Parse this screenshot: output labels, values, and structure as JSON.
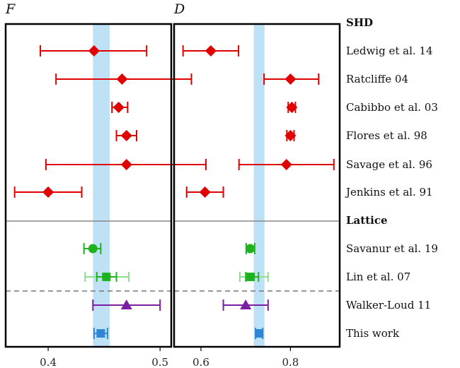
{
  "chart_data": [
    {
      "type": "scatter",
      "title": "F",
      "xlim": [
        0.362,
        0.51
      ],
      "xticks": [
        0.4,
        0.5
      ],
      "band": [
        0.44,
        0.455
      ],
      "band_color": "#bfe1f6",
      "points": [
        {
          "row": "Ledwig et al. 14",
          "value": 0.441,
          "low": 0.393,
          "high": 0.488,
          "marker": "diamond",
          "color": "#e00000"
        },
        {
          "row": "Ratcliffe 04",
          "value": 0.466,
          "low": 0.407,
          "high": 0.528,
          "marker": "diamond",
          "color": "#e00000"
        },
        {
          "row": "Cabibbo et al. 03",
          "value": 0.463,
          "low": 0.457,
          "high": 0.471,
          "marker": "diamond",
          "color": "#e00000"
        },
        {
          "row": "Flores et al. 98",
          "value": 0.47,
          "low": 0.461,
          "high": 0.479,
          "marker": "diamond",
          "color": "#e00000"
        },
        {
          "row": "Savage et al. 96",
          "value": 0.47,
          "low": 0.398,
          "high": 0.541,
          "marker": "diamond",
          "color": "#e00000"
        },
        {
          "row": "Jenkins et al. 91",
          "value": 0.4,
          "low": 0.37,
          "high": 0.43,
          "marker": "diamond",
          "color": "#e00000"
        },
        {
          "row": "Savanur et al. 19",
          "value": 0.44,
          "low": 0.432,
          "high": 0.447,
          "marker": "circle",
          "color": "#1fb21f"
        },
        {
          "row": "Lin et al. 07",
          "value": 0.452,
          "low": 0.433,
          "high": 0.472,
          "marker": "square",
          "color": "#1fb21f",
          "outer_color": "#90dd90"
        },
        {
          "row": "Walker-Loud 11",
          "value": 0.47,
          "low": 0.44,
          "high": 0.5,
          "marker": "triangle",
          "color": "#7a1fa2"
        },
        {
          "row": "This work",
          "value": 0.447,
          "low": 0.441,
          "high": 0.453,
          "marker": "square",
          "color": "#2f86d6"
        }
      ]
    },
    {
      "type": "scatter",
      "title": "D",
      "xlim": [
        0.54,
        0.91
      ],
      "xticks": [
        0.6,
        0.8
      ],
      "band": [
        0.718,
        0.742
      ],
      "band_color": "#bfe1f6",
      "points": [
        {
          "row": "Ledwig et al. 14",
          "value": 0.622,
          "low": 0.56,
          "high": 0.684,
          "marker": "diamond",
          "color": "#e00000"
        },
        {
          "row": "Ratcliffe 04",
          "value": 0.8,
          "low": 0.741,
          "high": 0.863,
          "marker": "diamond",
          "color": "#e00000"
        },
        {
          "row": "Cabibbo et al. 03",
          "value": 0.803,
          "low": 0.795,
          "high": 0.811,
          "marker": "diamond",
          "color": "#e00000"
        },
        {
          "row": "Flores et al. 98",
          "value": 0.8,
          "low": 0.792,
          "high": 0.808,
          "marker": "diamond",
          "color": "#e00000"
        },
        {
          "row": "Savage et al. 96",
          "value": 0.791,
          "low": 0.685,
          "high": 0.897,
          "marker": "diamond",
          "color": "#e00000"
        },
        {
          "row": "Jenkins et al. 91",
          "value": 0.609,
          "low": 0.568,
          "high": 0.65,
          "marker": "diamond",
          "color": "#e00000"
        },
        {
          "row": "Savanur et al. 19",
          "value": 0.71,
          "low": 0.701,
          "high": 0.72,
          "marker": "circle",
          "color": "#1fb21f"
        },
        {
          "row": "Lin et al. 07",
          "value": 0.711,
          "low": 0.687,
          "high": 0.75,
          "marker": "square",
          "color": "#1fb21f",
          "outer_color": "#90dd90"
        },
        {
          "row": "Walker-Loud 11",
          "value": 0.7,
          "low": 0.65,
          "high": 0.75,
          "marker": "triangle",
          "color": "#7a1fa2"
        },
        {
          "row": "This work",
          "value": 0.73,
          "low": 0.722,
          "high": 0.738,
          "marker": "square",
          "color": "#2f86d6"
        }
      ]
    }
  ],
  "row_labels": [
    {
      "text": "SHD",
      "header": true
    },
    {
      "text": "Ledwig et al. 14",
      "header": false
    },
    {
      "text": "Ratcliffe 04",
      "header": false
    },
    {
      "text": "Cabibbo et al. 03",
      "header": false
    },
    {
      "text": "Flores et al. 98",
      "header": false
    },
    {
      "text": "Savage et al. 96",
      "header": false
    },
    {
      "text": "Jenkins et al. 91",
      "header": false
    },
    {
      "text": "Lattice",
      "header": true
    },
    {
      "text": "Savanur et al. 19",
      "header": false
    },
    {
      "text": "Lin et al. 07",
      "header": false
    },
    {
      "text": "Walker-Loud 11",
      "header": false
    },
    {
      "text": "This work",
      "header": false
    }
  ]
}
